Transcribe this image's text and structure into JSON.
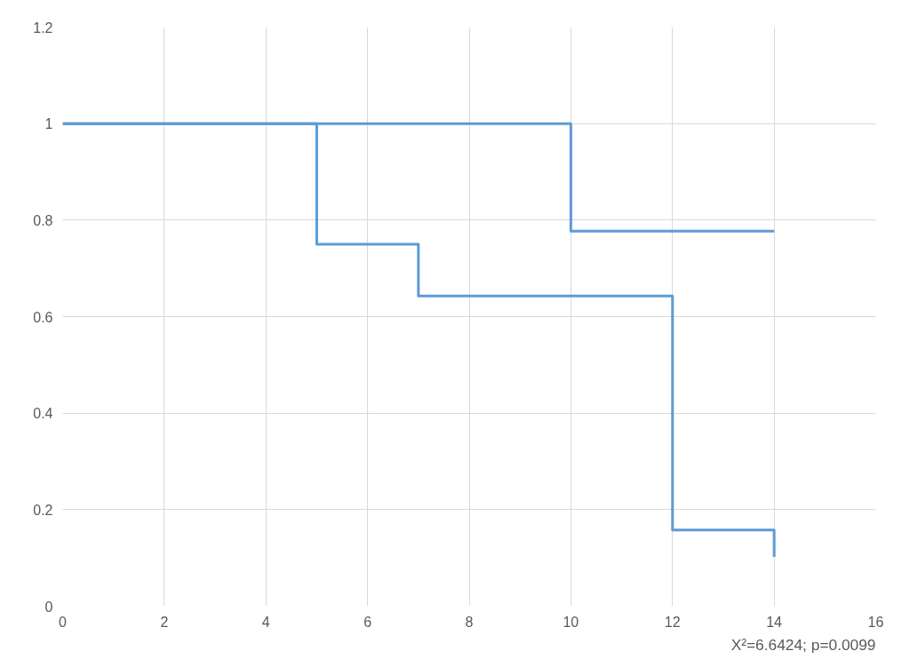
{
  "chart_data": {
    "type": "step",
    "xlim": [
      0,
      16
    ],
    "xticks": [
      0,
      2,
      4,
      6,
      8,
      10,
      12,
      14,
      16
    ],
    "ylim": [
      0,
      1.2
    ],
    "yticks": [
      0,
      {
        "value": 0.2,
        "label": "0.2"
      },
      {
        "value": 0.4,
        "label": "0.4"
      },
      {
        "value": 0.6,
        "label": "0.6"
      },
      {
        "value": 0.8,
        "label": "0.8"
      },
      1,
      {
        "value": 1.2,
        "label": "1.2"
      }
    ],
    "grid": true,
    "annotations": [
      "X²=6.6424; p=0.0099"
    ],
    "series": [
      {
        "color": "#5b9bd5",
        "x": [
          0,
          10,
          14
        ],
        "values": [
          1,
          0.777,
          0.777
        ]
      },
      {
        "color": "#5b9bd5",
        "x": [
          0,
          5,
          7,
          12,
          14,
          14
        ],
        "values": [
          1,
          0.75,
          0.643,
          0.158,
          0.158,
          0.102
        ]
      }
    ]
  }
}
